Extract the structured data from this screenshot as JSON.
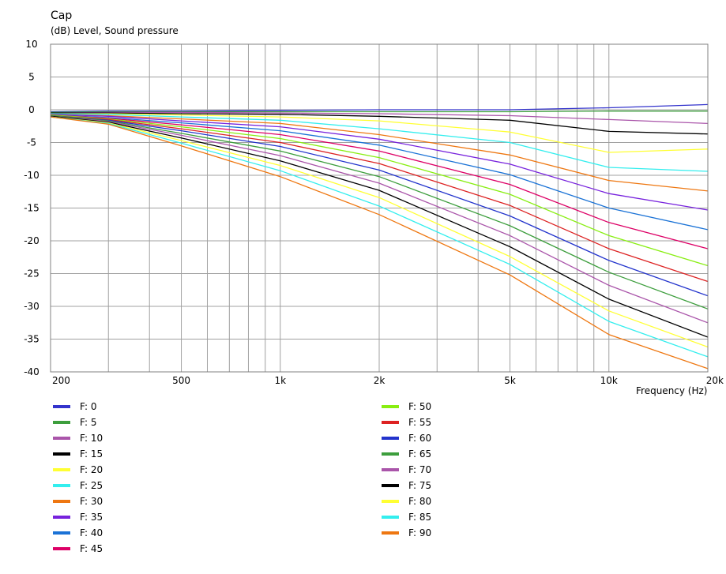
{
  "chart_data": {
    "type": "line",
    "title": "Cap",
    "ylabel": "(dB)  Level, Sound pressure",
    "xlabel": "Frequency  (Hz)",
    "xscale": "log",
    "xlim": [
      200,
      20000
    ],
    "ylim": [
      -40,
      10
    ],
    "grid": true,
    "legend_position": "bottom",
    "x_ticks": [
      {
        "value": 200,
        "label": "200"
      },
      {
        "value": 500,
        "label": "500"
      },
      {
        "value": 1000,
        "label": "1k"
      },
      {
        "value": 2000,
        "label": "2k"
      },
      {
        "value": 5000,
        "label": "5k"
      },
      {
        "value": 10000,
        "label": "10k"
      },
      {
        "value": 20000,
        "label": "20k"
      }
    ],
    "x_gridlines": [
      200,
      300,
      400,
      500,
      600,
      700,
      800,
      900,
      1000,
      2000,
      3000,
      4000,
      5000,
      6000,
      7000,
      8000,
      9000,
      10000,
      20000
    ],
    "y_ticks": [
      {
        "value": 10,
        "label": "10"
      },
      {
        "value": 5,
        "label": "5"
      },
      {
        "value": 0,
        "label": "0"
      },
      {
        "value": -5,
        "label": "-5"
      },
      {
        "value": -10,
        "label": "-10"
      },
      {
        "value": -15,
        "label": "-15"
      },
      {
        "value": -20,
        "label": "-20"
      },
      {
        "value": -25,
        "label": "-25"
      },
      {
        "value": -30,
        "label": "-30"
      },
      {
        "value": -35,
        "label": "-35"
      },
      {
        "value": -40,
        "label": "-40"
      }
    ],
    "x": [
      200,
      300,
      500,
      1000,
      2000,
      5000,
      10000,
      20000
    ],
    "series": [
      {
        "name": "F: 0",
        "color": "#3333cc",
        "values": [
          -0.3,
          -0.2,
          -0.2,
          -0.1,
          0,
          0,
          0.3,
          0.8
        ]
      },
      {
        "name": "F: 5",
        "color": "#3d9e3d",
        "values": [
          -0.4,
          -0.3,
          -0.3,
          -0.3,
          -0.3,
          -0.3,
          -0.2,
          -0.2
        ]
      },
      {
        "name": "F: 10",
        "color": "#aa55aa",
        "values": [
          -0.5,
          -0.4,
          -0.4,
          -0.5,
          -0.6,
          -0.9,
          -1.5,
          -2.1
        ]
      },
      {
        "name": "F: 15",
        "color": "#000000",
        "values": [
          -0.5,
          -0.5,
          -0.6,
          -0.7,
          -1.0,
          -1.6,
          -3.3,
          -3.7
        ]
      },
      {
        "name": "F: 20",
        "color": "#ffff33",
        "values": [
          -0.6,
          -0.6,
          -0.8,
          -1.1,
          -1.7,
          -3.4,
          -6.5,
          -6.0
        ]
      },
      {
        "name": "F: 25",
        "color": "#33eeee",
        "values": [
          -0.6,
          -0.7,
          -1.1,
          -1.6,
          -2.9,
          -5.0,
          -8.8,
          -9.4
        ]
      },
      {
        "name": "F: 30",
        "color": "#ee7711",
        "values": [
          -0.7,
          -0.9,
          -1.4,
          -2.1,
          -3.8,
          -6.9,
          -10.8,
          -12.4
        ]
      },
      {
        "name": "F: 35",
        "color": "#7722dd",
        "values": [
          -0.7,
          -1.0,
          -1.7,
          -2.6,
          -4.5,
          -8.3,
          -12.8,
          -15.3
        ]
      },
      {
        "name": "F: 40",
        "color": "#1a72d6",
        "values": [
          -0.8,
          -1.2,
          -2.0,
          -3.2,
          -5.4,
          -9.9,
          -15.0,
          -18.3
        ]
      },
      {
        "name": "F: 45",
        "color": "#dd0066",
        "values": [
          -0.8,
          -1.3,
          -2.3,
          -3.8,
          -6.3,
          -11.4,
          -17.2,
          -21.2
        ]
      },
      {
        "name": "F: 50",
        "color": "#88ee11",
        "values": [
          -0.8,
          -1.4,
          -2.6,
          -4.4,
          -7.3,
          -12.9,
          -19.2,
          -23.8
        ]
      },
      {
        "name": "F: 55",
        "color": "#dd2222",
        "values": [
          -0.9,
          -1.5,
          -2.9,
          -5.0,
          -8.2,
          -14.6,
          -21.2,
          -26.2
        ]
      },
      {
        "name": "F: 60",
        "color": "#2233cc",
        "values": [
          -0.9,
          -1.6,
          -3.2,
          -5.6,
          -9.2,
          -16.2,
          -23.0,
          -28.4
        ]
      },
      {
        "name": "F: 65",
        "color": "#3d9e3d",
        "values": [
          -0.9,
          -1.7,
          -3.6,
          -6.3,
          -10.2,
          -17.7,
          -24.8,
          -30.4
        ]
      },
      {
        "name": "F: 70",
        "color": "#aa55aa",
        "values": [
          -1.0,
          -1.8,
          -3.9,
          -7.0,
          -11.2,
          -19.2,
          -26.8,
          -32.5
        ]
      },
      {
        "name": "F: 75",
        "color": "#000000",
        "values": [
          -1.0,
          -1.9,
          -4.3,
          -7.8,
          -12.3,
          -20.9,
          -28.9,
          -34.7
        ]
      },
      {
        "name": "F: 80",
        "color": "#ffff33",
        "values": [
          -1.1,
          -2.0,
          -4.7,
          -8.5,
          -13.4,
          -22.4,
          -30.7,
          -36.2
        ]
      },
      {
        "name": "F: 85",
        "color": "#33eeee",
        "values": [
          -1.1,
          -2.1,
          -5.1,
          -9.3,
          -14.7,
          -23.6,
          -32.3,
          -37.7
        ]
      },
      {
        "name": "F: 90",
        "color": "#ee7711",
        "values": [
          -1.1,
          -2.2,
          -5.5,
          -10.2,
          -16.0,
          -25.2,
          -34.3,
          -39.5
        ]
      }
    ]
  }
}
